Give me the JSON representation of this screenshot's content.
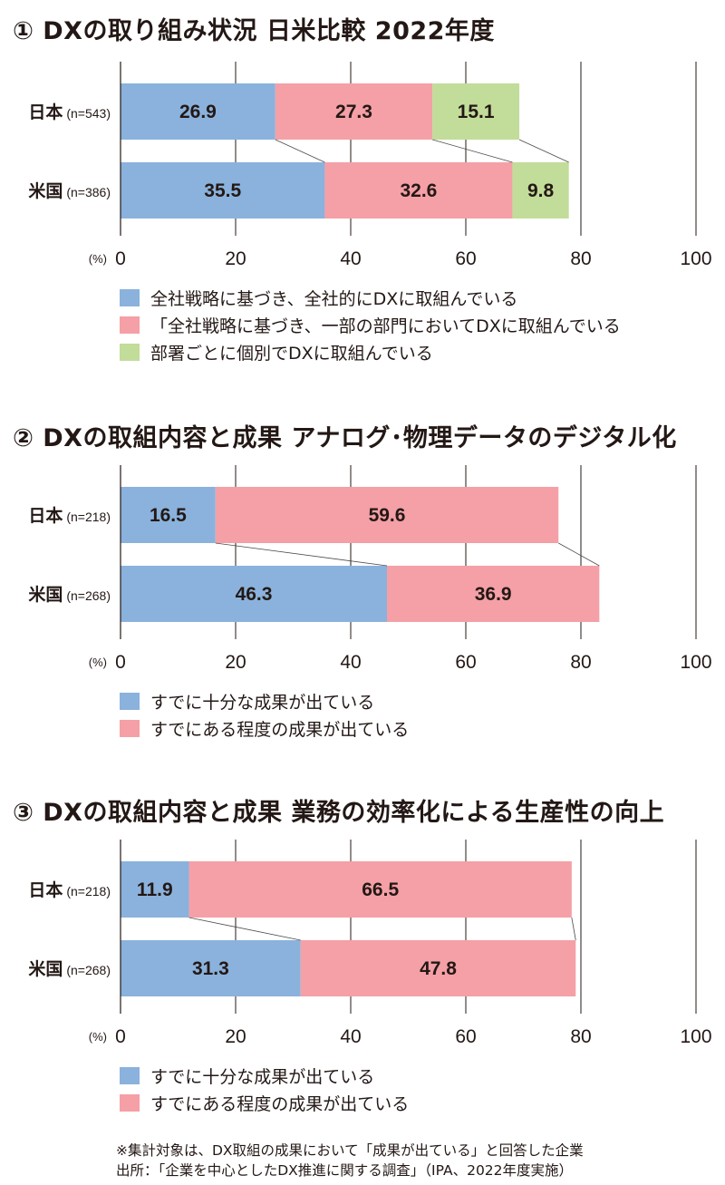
{
  "colors": {
    "blue": "#8ab2dc",
    "pink": "#f4a0a6",
    "green": "#c2dc99",
    "grid": "#231815"
  },
  "chart_data": [
    {
      "type": "bar",
      "orientation": "horizontal",
      "stacked": true,
      "title": "① DXの取り組み状況 日米比較 2022年度",
      "categories": [
        "日本",
        "米国"
      ],
      "sample_sizes": [
        "(n=543)",
        "(n=386)"
      ],
      "series": [
        {
          "name": "全社戦略に基づき、全社的にDXに取組んでいる",
          "color": "blue",
          "values": [
            26.9,
            35.5
          ],
          "labels": [
            "26.9",
            "35.5"
          ]
        },
        {
          "name": "「全社戦略に基づき、一部の部門においてDXに取組んでいる",
          "color": "pink",
          "values": [
            27.3,
            32.6
          ],
          "labels": [
            "27.3",
            "32.6"
          ]
        },
        {
          "name": "部署ごとに個別でDXに取組んでいる",
          "color": "green",
          "values": [
            15.1,
            9.8
          ],
          "labels": [
            "15.1",
            "9.8"
          ]
        }
      ],
      "xlabel": "(%)",
      "xlim": [
        0,
        100
      ],
      "xticks": [
        "0",
        "20",
        "40",
        "60",
        "80",
        "100"
      ]
    },
    {
      "type": "bar",
      "orientation": "horizontal",
      "stacked": true,
      "title": "② DXの取組内容と成果 アナログ･物理データのデジタル化",
      "categories": [
        "日本",
        "米国"
      ],
      "sample_sizes": [
        "(n=218)",
        "(n=268)"
      ],
      "series": [
        {
          "name": "すでに十分な成果が出ている",
          "color": "blue",
          "values": [
            16.5,
            46.3
          ],
          "labels": [
            "16.5",
            "46.3"
          ]
        },
        {
          "name": "すでにある程度の成果が出ている",
          "color": "pink",
          "values": [
            59.6,
            36.9
          ],
          "labels": [
            "59.6",
            "36.9"
          ]
        }
      ],
      "xlabel": "(%)",
      "xlim": [
        0,
        100
      ],
      "xticks": [
        "0",
        "20",
        "40",
        "60",
        "80",
        "100"
      ]
    },
    {
      "type": "bar",
      "orientation": "horizontal",
      "stacked": true,
      "title": "③ DXの取組内容と成果 業務の効率化による生産性の向上",
      "categories": [
        "日本",
        "米国"
      ],
      "sample_sizes": [
        "(n=218)",
        "(n=268)"
      ],
      "series": [
        {
          "name": "すでに十分な成果が出ている",
          "color": "blue",
          "values": [
            11.9,
            31.3
          ],
          "labels": [
            "11.9",
            "31.3"
          ]
        },
        {
          "name": "すでにある程度の成果が出ている",
          "color": "pink",
          "values": [
            66.5,
            47.8
          ],
          "labels": [
            "66.5",
            "47.8"
          ]
        }
      ],
      "xlabel": "(%)",
      "xlim": [
        0,
        100
      ],
      "xticks": [
        "0",
        "20",
        "40",
        "60",
        "80",
        "100"
      ]
    }
  ],
  "footnote": {
    "line1": "※集計対象は、DX取組の成果において「成果が出ている」と回答した企業",
    "line2": "出所：「企業を中心としたDX推進に関する調査」（IPA、2022年度実施）"
  }
}
